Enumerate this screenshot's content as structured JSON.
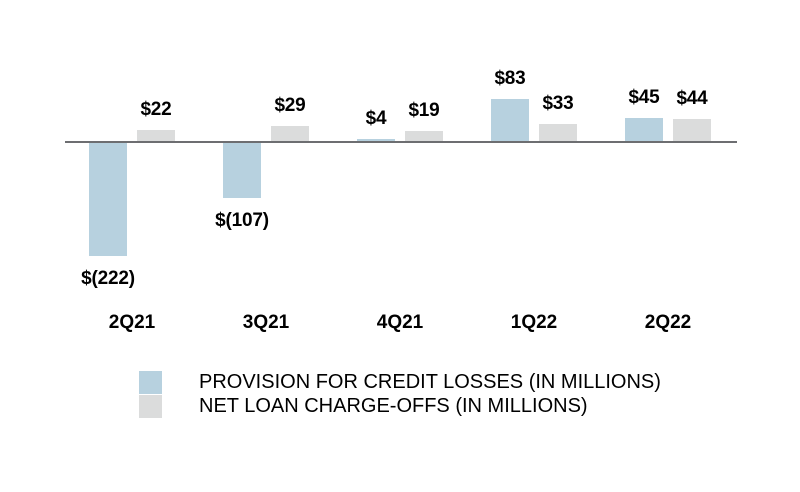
{
  "chart_data": {
    "type": "bar",
    "title": "",
    "xlabel": "",
    "ylabel": "",
    "categories": [
      "2Q21",
      "3Q21",
      "4Q21",
      "1Q22",
      "2Q22"
    ],
    "series": [
      {
        "name": "PROVISION FOR CREDIT LOSSES (IN MILLIONS)",
        "color": "#B7D1DF",
        "values": [
          -222,
          -107,
          4,
          83,
          45
        ],
        "data_labels": [
          "$(222)",
          "$(107)",
          "$4",
          "$83",
          "$45"
        ]
      },
      {
        "name": "NET LOAN CHARGE-OFFS (IN MILLIONS)",
        "color": "#DBDCDC",
        "values": [
          22,
          29,
          19,
          33,
          44
        ],
        "data_labels": [
          "$22",
          "$29",
          "$19",
          "$33",
          "$44"
        ]
      }
    ],
    "baseline": 0,
    "grid": false,
    "legend_position": "bottom-left",
    "axis_color": "#6D6E71",
    "label_color": "#000000",
    "background_color": "#FFFFFF"
  }
}
